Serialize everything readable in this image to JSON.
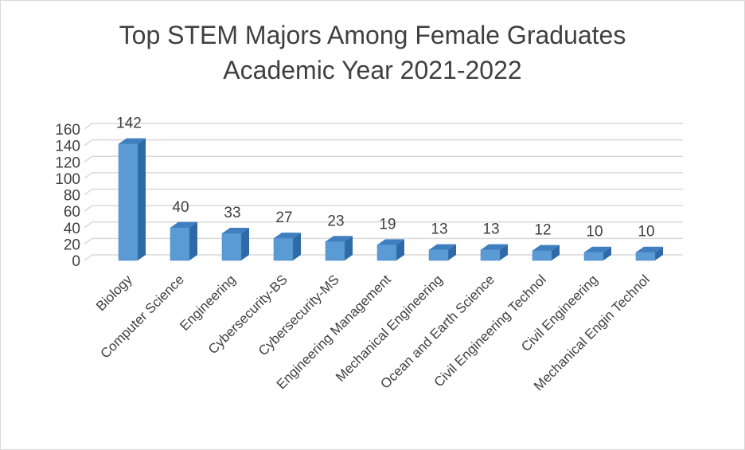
{
  "chart_data": {
    "type": "bar",
    "title": "Top STEM Majors Among Female Graduates",
    "subtitle": "Academic Year 2021-2022",
    "categories": [
      "Biology",
      "Computer Science",
      "Engineering",
      "Cybersecurity-BS",
      "Cybersecurity-MS",
      "Engineering Management",
      "Mechanical Engineering",
      "Ocean and Earth Science",
      "Civil Engineering Technol",
      "Civil Engineering",
      "Mechanical Engin Technol"
    ],
    "values": [
      142,
      40,
      33,
      27,
      23,
      19,
      13,
      13,
      12,
      10,
      10
    ],
    "data_labels": [
      "142",
      "40",
      "33",
      "27",
      "23",
      "19",
      "13",
      "13",
      "12",
      "10",
      "10"
    ],
    "yticks": [
      "0",
      "20",
      "40",
      "60",
      "80",
      "100",
      "120",
      "140",
      "160"
    ],
    "ylim": [
      0,
      160
    ],
    "grid": true,
    "style": "3d-column",
    "colors": {
      "bar_front": "#5b9bd5",
      "bar_side": "#2e6aa8",
      "bar_top": "#3f7fc0",
      "gridline": "#d9d9d9",
      "text": "#404040"
    }
  }
}
